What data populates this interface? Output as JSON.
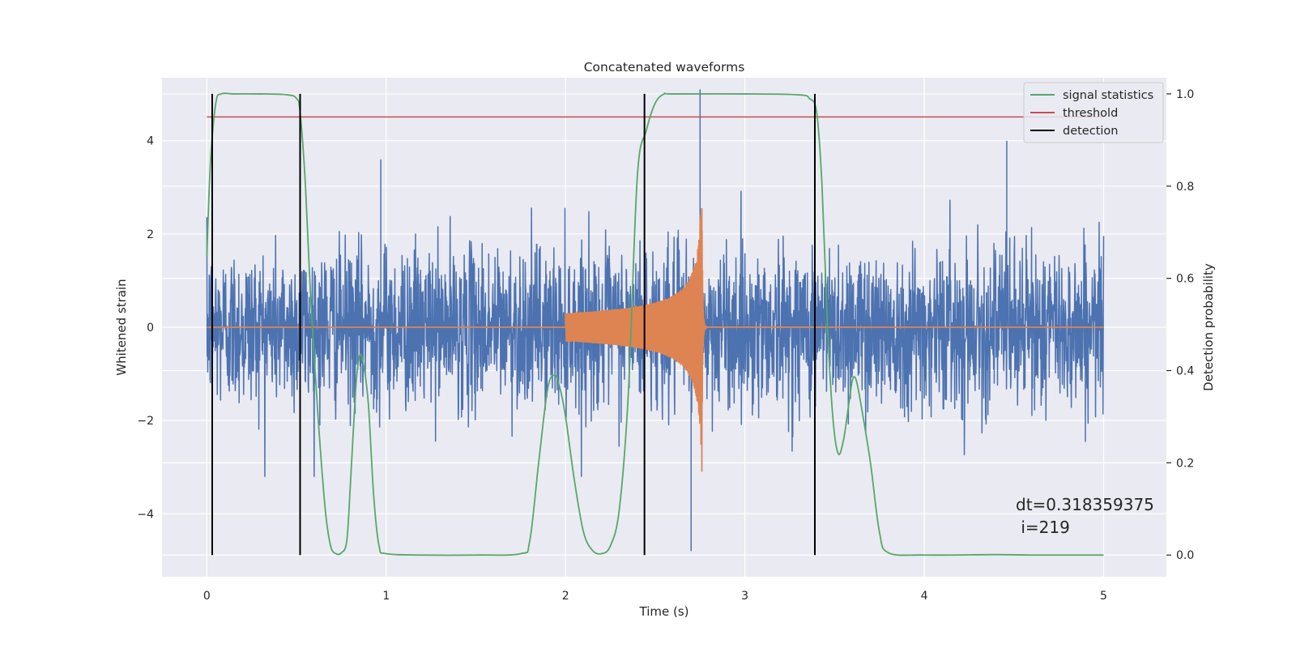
{
  "chart_data": {
    "type": "line",
    "title": "Concatenated waveforms",
    "xlabel": "Time (s)",
    "ylabel": "Whitened strain",
    "y2label": "Detection probability",
    "xlim": [
      -0.25,
      5.35
    ],
    "ylim": [
      -5.35,
      5.35
    ],
    "y2lim": [
      -0.047,
      1.035
    ],
    "xticks": [
      0,
      1,
      2,
      3,
      4,
      5
    ],
    "xtick_labels": [
      "0",
      "1",
      "2",
      "3",
      "4",
      "5"
    ],
    "yticks": [
      -4,
      -2,
      0,
      2,
      4
    ],
    "ytick_labels": [
      "−4",
      "−2",
      "0",
      "2",
      "4"
    ],
    "y2ticks": [
      0.0,
      0.2,
      0.4,
      0.6,
      0.8,
      1.0
    ],
    "y2tick_labels": [
      "0.0",
      "0.2",
      "0.4",
      "0.6",
      "0.8",
      "1.0"
    ],
    "grid": true,
    "legend_position": "top-right",
    "colors": {
      "strain": "#4c72b0",
      "template": "#dd8452",
      "signal_statistics": "#55a868",
      "threshold": "#c44e52",
      "detection": "#000000",
      "axes_background": "#eaeaf2",
      "grid": "#ffffff"
    },
    "legend": [
      {
        "label": "signal statistics",
        "color": "#55a868"
      },
      {
        "label": "threshold",
        "color": "#c44e52"
      },
      {
        "label": "detection",
        "color": "#000000"
      }
    ],
    "series": [
      {
        "key": "strain",
        "axis": "left",
        "description_visible": false,
        "x_range": [
          0,
          5
        ],
        "envelope_abs": 2.0,
        "notable_spikes": [
          {
            "x": 0.97,
            "y": 3.6
          },
          {
            "x": 2.7,
            "y": -4.8
          },
          {
            "x": 2.75,
            "y": 5.1
          },
          {
            "x": 4.46,
            "y": 4.0
          }
        ]
      },
      {
        "key": "template",
        "axis": "left",
        "x_range": [
          0,
          5
        ],
        "chirp_start": 2.0,
        "merger_time": 2.76,
        "peak_amplitude": 3.4
      },
      {
        "key": "signal_statistics",
        "axis": "right",
        "x": [
          0.0,
          0.02,
          0.05,
          0.08,
          0.15,
          0.3,
          0.45,
          0.5,
          0.52,
          0.55,
          0.58,
          0.62,
          0.66,
          0.69,
          0.72,
          0.75,
          0.78,
          0.8,
          0.83,
          0.85,
          0.87,
          0.9,
          0.93,
          0.96,
          1.0,
          1.2,
          1.5,
          1.75,
          1.8,
          1.85,
          1.9,
          1.94,
          1.97,
          2.0,
          2.05,
          2.1,
          2.15,
          2.2,
          2.25,
          2.3,
          2.35,
          2.4,
          2.45,
          2.5,
          2.55,
          2.6,
          3.0,
          3.3,
          3.36,
          3.4,
          3.43,
          3.46,
          3.49,
          3.52,
          3.55,
          3.58,
          3.6,
          3.62,
          3.65,
          3.7,
          3.75,
          3.8,
          4.0,
          4.4,
          4.6,
          5.0
        ],
        "values": [
          0.65,
          0.85,
          0.98,
          1.0,
          1.0,
          1.0,
          0.998,
          0.99,
          0.96,
          0.8,
          0.55,
          0.3,
          0.1,
          0.02,
          0.003,
          0.005,
          0.03,
          0.15,
          0.36,
          0.43,
          0.42,
          0.33,
          0.13,
          0.02,
          0.003,
          0.0,
          0.0,
          0.003,
          0.03,
          0.2,
          0.36,
          0.39,
          0.36,
          0.3,
          0.16,
          0.05,
          0.01,
          0.003,
          0.02,
          0.1,
          0.35,
          0.82,
          0.92,
          0.98,
          1.0,
          1.0,
          1.0,
          0.998,
          0.99,
          0.96,
          0.8,
          0.5,
          0.3,
          0.22,
          0.25,
          0.33,
          0.38,
          0.38,
          0.32,
          0.2,
          0.05,
          0.005,
          0.0,
          0.001,
          0.0,
          0.0
        ]
      },
      {
        "key": "threshold",
        "axis": "right",
        "x": [
          0,
          5
        ],
        "values": [
          0.95,
          0.95
        ]
      },
      {
        "key": "detection",
        "axis": "right",
        "x": [
          0.03,
          0.52,
          2.44,
          3.39
        ],
        "y_from": 0.0,
        "y_to": 1.0
      }
    ],
    "annotation": {
      "line1": "dt=0.318359375",
      "line2": " i=219"
    }
  }
}
